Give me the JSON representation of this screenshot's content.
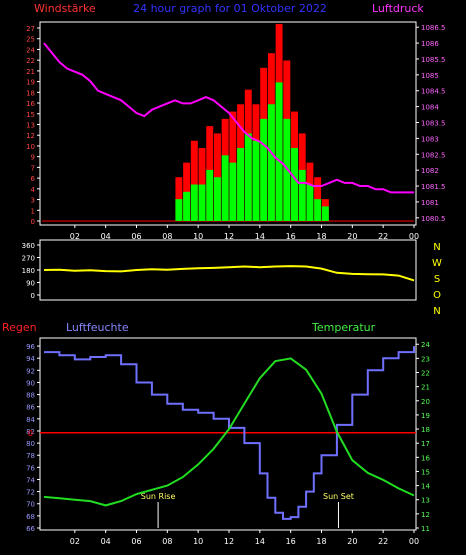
{
  "colors": {
    "background": "#000000",
    "frame": "#ffffff",
    "wind_avg": "#00ff00",
    "wind_gust": "#ff0000",
    "pressure": "#ff00ff",
    "direction": "#ffff00",
    "humidity": "#7070ff",
    "temperature": "#22dd22",
    "rain": "#ff0000",
    "pressure_axis": "#ff66ff",
    "humidity_axis": "#9999ff",
    "temperature_axis": "#55ff55",
    "wind_axis": "#ff4444",
    "direction_axis": "#ffff00"
  },
  "labels": {
    "top_left": "Windstärke",
    "top_title": "24 hour graph for 01 Oktober 2022",
    "top_right": "Luftdruck",
    "rain": "Regen",
    "humidity": "Luftfeuchte",
    "temperature": "Temperatur",
    "sunrise": "Sun Rise",
    "sunset": "Sun Set",
    "rain_zero": "0"
  },
  "chart_data": [
    {
      "type": "bar",
      "name": "wind_pressure",
      "title": "24 hour graph for 01 Oktober 2022",
      "xticks": [
        "02",
        "04",
        "06",
        "08",
        "10",
        "12",
        "14",
        "16",
        "18",
        "20",
        "22",
        "00"
      ],
      "x_range_hours": [
        0,
        24
      ],
      "left_axis": {
        "label": "Windstärke",
        "ticks": [
          "0",
          "1",
          "3",
          "4",
          "6",
          "7",
          "9",
          "10",
          "12",
          "13",
          "15",
          "16",
          "18",
          "19",
          "21",
          "22",
          "24",
          "25",
          "27"
        ],
        "ylim": [
          0,
          27
        ]
      },
      "right_axis": {
        "label": "Luftdruck",
        "ticks": [
          "1080.5",
          "1081",
          "1081.5",
          "1082",
          "1082.5",
          "1083",
          "1083.5",
          "1084",
          "1084.5",
          "1085",
          "1085.5",
          "1086",
          "1086.5"
        ],
        "ylim": [
          1080.4,
          1086.6
        ]
      },
      "pressure": {
        "hours": [
          0,
          0.5,
          1,
          1.5,
          2,
          2.5,
          3,
          3.5,
          4,
          4.5,
          5,
          5.5,
          6,
          6.5,
          7,
          7.5,
          8,
          8.5,
          9,
          9.5,
          10,
          10.5,
          11,
          11.5,
          12,
          12.5,
          13,
          13.5,
          14,
          14.5,
          15,
          15.5,
          16,
          16.5,
          17,
          17.5,
          18,
          18.5,
          19,
          19.5,
          20,
          20.5,
          21,
          21.5,
          22,
          22.5,
          23,
          23.5,
          24
        ],
        "values": [
          1086,
          1085.7,
          1085.4,
          1085.2,
          1085.1,
          1085.0,
          1084.8,
          1084.5,
          1084.4,
          1084.3,
          1084.2,
          1084.0,
          1083.8,
          1083.7,
          1083.9,
          1084.0,
          1084.1,
          1084.2,
          1084.1,
          1084.1,
          1084.2,
          1084.3,
          1084.2,
          1084.0,
          1083.8,
          1083.5,
          1083.2,
          1083.0,
          1082.9,
          1082.7,
          1082.4,
          1082.2,
          1081.9,
          1081.6,
          1081.6,
          1081.5,
          1081.5,
          1081.6,
          1081.7,
          1081.6,
          1081.6,
          1081.5,
          1081.5,
          1081.4,
          1081.4,
          1081.3,
          1081.3,
          1081.3,
          1081.3
        ]
      },
      "wind": {
        "hours": [
          8.5,
          9,
          9.5,
          10,
          10.5,
          11,
          11.5,
          12,
          12.5,
          13,
          13.5,
          14,
          14.5,
          15,
          15.5,
          16,
          16.5,
          17,
          17.5,
          18
        ],
        "avg": [
          3,
          4,
          5,
          5,
          7,
          6,
          9,
          8,
          10,
          12,
          11,
          14,
          16,
          19,
          14,
          10,
          7,
          5,
          3,
          2
        ],
        "gust": [
          6,
          8,
          11,
          10,
          13,
          12,
          14,
          15,
          16,
          18,
          16,
          21,
          23,
          27,
          22,
          15,
          12,
          8,
          6,
          3
        ]
      }
    },
    {
      "type": "line",
      "name": "wind_direction",
      "left_ticks": [
        "0",
        "90",
        "180",
        "270",
        "360"
      ],
      "ylim": [
        0,
        360
      ],
      "right_letters": [
        "N",
        "W",
        "S",
        "O",
        "N"
      ],
      "hours": [
        0,
        1,
        2,
        3,
        4,
        5,
        6,
        7,
        8,
        9,
        10,
        11,
        12,
        13,
        14,
        15,
        16,
        17,
        18,
        19,
        20,
        21,
        22,
        23,
        24
      ],
      "values": [
        180,
        182,
        175,
        178,
        172,
        170,
        180,
        185,
        182,
        188,
        192,
        195,
        200,
        205,
        200,
        205,
        208,
        205,
        190,
        160,
        152,
        150,
        148,
        140,
        105
      ]
    },
    {
      "type": "line",
      "name": "humidity_temperature",
      "xticks": [
        "02",
        "04",
        "06",
        "08",
        "10",
        "12",
        "14",
        "16",
        "18",
        "20",
        "22",
        "00"
      ],
      "left_axis": {
        "label": "Luftfeuchte",
        "ticks": [
          "66",
          "68",
          "70",
          "72",
          "74",
          "76",
          "78",
          "80",
          "82",
          "84",
          "86",
          "88",
          "90",
          "92",
          "94",
          "96"
        ],
        "ylim": [
          66,
          97
        ]
      },
      "right_axis": {
        "label": "Temperatur",
        "ticks": [
          "11",
          "12",
          "13",
          "14",
          "15",
          "16",
          "17",
          "18",
          "19",
          "20",
          "21",
          "22",
          "23",
          "24"
        ],
        "ylim": [
          11,
          24.3
        ]
      },
      "rain_zero_value": 81.7,
      "humidity": {
        "hours": [
          0,
          1,
          2,
          3,
          4,
          5,
          6,
          7,
          8,
          9,
          10,
          11,
          12,
          13,
          14,
          14.5,
          15,
          15.5,
          16,
          16.5,
          17,
          17.5,
          18,
          19,
          20,
          21,
          22,
          23,
          24
        ],
        "values": [
          95,
          94.5,
          93.8,
          94.2,
          94.5,
          93,
          90,
          88,
          86.5,
          85.5,
          85,
          84,
          82.5,
          80,
          75,
          71,
          68.5,
          67.5,
          67.8,
          69.5,
          72,
          75,
          78,
          83,
          88,
          92,
          94,
          95,
          96
        ]
      },
      "temperature": {
        "hours": [
          0,
          1,
          2,
          3,
          4,
          5,
          6,
          7,
          8,
          9,
          10,
          11,
          12,
          13,
          14,
          15,
          16,
          17,
          18,
          19,
          20,
          21,
          22,
          23,
          24
        ],
        "values": [
          13.2,
          13.1,
          13.0,
          12.9,
          12.6,
          12.9,
          13.4,
          13.7,
          14.0,
          14.6,
          15.5,
          16.6,
          18.0,
          19.8,
          21.6,
          22.8,
          23.0,
          22.2,
          20.5,
          17.8,
          15.8,
          14.9,
          14.4,
          13.8,
          13.3
        ]
      },
      "sunrise_hour": 7.4,
      "sunset_hour": 19.1
    }
  ]
}
